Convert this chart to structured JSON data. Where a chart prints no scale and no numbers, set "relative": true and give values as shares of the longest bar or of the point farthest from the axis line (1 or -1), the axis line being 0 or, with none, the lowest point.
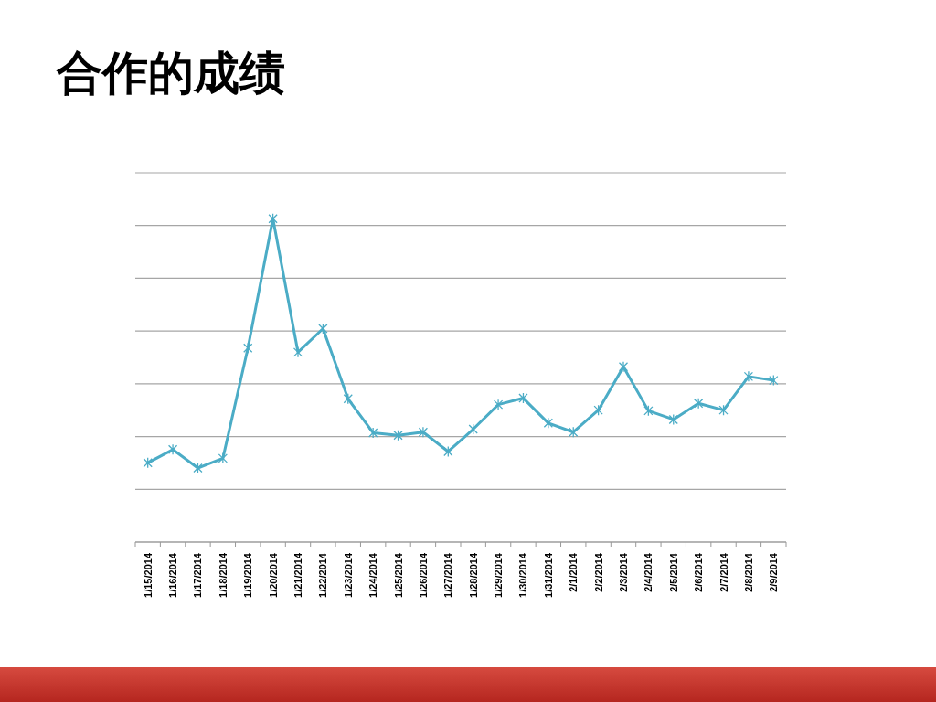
{
  "chart_data": {
    "type": "line",
    "title": "合作的成绩",
    "categories": [
      "1/15/2014",
      "1/16/2014",
      "1/17/2014",
      "1/18/2014",
      "1/19/2014",
      "1/20/2014",
      "1/21/2014",
      "1/22/2014",
      "1/23/2014",
      "1/24/2014",
      "1/25/2014",
      "1/26/2014",
      "1/27/2014",
      "1/28/2014",
      "1/29/2014",
      "1/30/2014",
      "1/31/2014",
      "2/1/2014",
      "2/2/2014",
      "2/3/2014",
      "2/4/2014",
      "2/5/2014",
      "2/6/2014",
      "2/7/2014",
      "2/8/2014",
      "2/9/2014"
    ],
    "values": [
      0.245,
      0.286,
      0.229,
      0.259,
      0.6,
      1,
      0.587,
      0.66,
      0.443,
      0.338,
      0.33,
      0.34,
      0.28,
      0.349,
      0.425,
      0.445,
      0.368,
      0.34,
      0.408,
      0.542,
      0.406,
      0.379,
      0.429,
      0.408,
      0.512,
      0.5
    ],
    "color": "#4bacc6",
    "relative": true,
    "grid": "y",
    "marker": "cross",
    "line_style": "solid"
  }
}
